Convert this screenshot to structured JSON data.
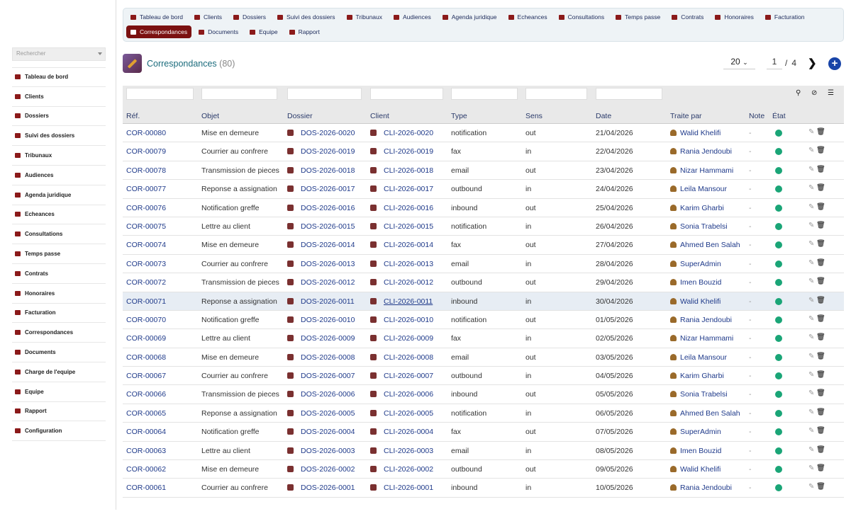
{
  "sidebar": {
    "search_placeholder": "Rechercher",
    "items": [
      {
        "label": "Tableau de bord",
        "icon": "dashboard-icon"
      },
      {
        "label": "Clients",
        "icon": "users-icon"
      },
      {
        "label": "Dossiers",
        "icon": "folder-icon"
      },
      {
        "label": "Suivi des dossiers",
        "icon": "columns-icon"
      },
      {
        "label": "Tribunaux",
        "icon": "balance-scale-icon"
      },
      {
        "label": "Audiences",
        "icon": "gavel-icon"
      },
      {
        "label": "Agenda juridique",
        "icon": "calendar-icon"
      },
      {
        "label": "Echeances",
        "icon": "clock-icon"
      },
      {
        "label": "Consultations",
        "icon": "comments-icon"
      },
      {
        "label": "Temps passe",
        "icon": "user-clock-icon"
      },
      {
        "label": "Contrats",
        "icon": "file-signature-icon"
      },
      {
        "label": "Honoraires",
        "icon": "money-icon"
      },
      {
        "label": "Facturation",
        "icon": "invoice-icon"
      },
      {
        "label": "Correspondances",
        "icon": "envelope-icon"
      },
      {
        "label": "Documents",
        "icon": "folder-icon"
      },
      {
        "label": "Charge de l'equipe",
        "icon": "team-icon"
      },
      {
        "label": "Equipe",
        "icon": "user-icon"
      },
      {
        "label": "Rapport",
        "icon": "chart-pie-icon"
      },
      {
        "label": "Configuration",
        "icon": "gear-icon"
      }
    ]
  },
  "topnav": {
    "row1": [
      {
        "label": "Tableau de bord",
        "icon": "dashboard-icon"
      },
      {
        "label": "Clients",
        "icon": "users-icon"
      },
      {
        "label": "Dossiers",
        "icon": "folder-icon"
      },
      {
        "label": "Suivi des dossiers",
        "icon": "columns-icon"
      },
      {
        "label": "Tribunaux",
        "icon": "balance-scale-icon"
      },
      {
        "label": "Audiences",
        "icon": "gavel-icon"
      },
      {
        "label": "Agenda juridique",
        "icon": "calendar-icon"
      },
      {
        "label": "Echeances",
        "icon": "clock-icon"
      },
      {
        "label": "Consultations",
        "icon": "comments-icon"
      },
      {
        "label": "Temps passe",
        "icon": "user-clock-icon"
      },
      {
        "label": "Contrats",
        "icon": "file-signature-icon"
      },
      {
        "label": "Honoraires",
        "icon": "money-icon"
      },
      {
        "label": "Facturation",
        "icon": "invoice-icon"
      }
    ],
    "row2": [
      {
        "label": "Correspondances",
        "icon": "envelope-icon",
        "active": true
      },
      {
        "label": "Documents",
        "icon": "folder-icon"
      },
      {
        "label": "Equipe",
        "icon": "team-icon"
      },
      {
        "label": "Rapport",
        "icon": "chart-pie-icon"
      }
    ]
  },
  "header": {
    "title": "Correspondances",
    "count": "(80)",
    "page_size": "20",
    "page": "1",
    "separator": "/",
    "total_pages": "4",
    "next": "❯",
    "add": "+"
  },
  "table": {
    "columns": [
      "Réf.",
      "Objet",
      "Dossier",
      "Client",
      "Type",
      "Sens",
      "Date",
      "Traite par",
      "Note",
      "État"
    ],
    "rows": [
      {
        "ref": "COR-00080",
        "objet": "Mise en demeure",
        "dossier": "DOS-2026-0020",
        "client": "CLI-2026-0020",
        "type": "notification",
        "sens": "out",
        "date": "21/04/2026",
        "user": "Walid Khelifi",
        "note": "-"
      },
      {
        "ref": "COR-00079",
        "objet": "Courrier au confrere",
        "dossier": "DOS-2026-0019",
        "client": "CLI-2026-0019",
        "type": "fax",
        "sens": "in",
        "date": "22/04/2026",
        "user": "Rania Jendoubi",
        "note": "-"
      },
      {
        "ref": "COR-00078",
        "objet": "Transmission de pieces",
        "dossier": "DOS-2026-0018",
        "client": "CLI-2026-0018",
        "type": "email",
        "sens": "out",
        "date": "23/04/2026",
        "user": "Nizar Hammami",
        "note": "-"
      },
      {
        "ref": "COR-00077",
        "objet": "Reponse a assignation",
        "dossier": "DOS-2026-0017",
        "client": "CLI-2026-0017",
        "type": "outbound",
        "sens": "in",
        "date": "24/04/2026",
        "user": "Leila Mansour",
        "note": "-"
      },
      {
        "ref": "COR-00076",
        "objet": "Notification greffe",
        "dossier": "DOS-2026-0016",
        "client": "CLI-2026-0016",
        "type": "inbound",
        "sens": "out",
        "date": "25/04/2026",
        "user": "Karim Gharbi",
        "note": "-"
      },
      {
        "ref": "COR-00075",
        "objet": "Lettre au client",
        "dossier": "DOS-2026-0015",
        "client": "CLI-2026-0015",
        "type": "notification",
        "sens": "in",
        "date": "26/04/2026",
        "user": "Sonia Trabelsi",
        "note": "-"
      },
      {
        "ref": "COR-00074",
        "objet": "Mise en demeure",
        "dossier": "DOS-2026-0014",
        "client": "CLI-2026-0014",
        "type": "fax",
        "sens": "out",
        "date": "27/04/2026",
        "user": "Ahmed Ben Salah",
        "note": "-"
      },
      {
        "ref": "COR-00073",
        "objet": "Courrier au confrere",
        "dossier": "DOS-2026-0013",
        "client": "CLI-2026-0013",
        "type": "email",
        "sens": "in",
        "date": "28/04/2026",
        "user": "SuperAdmin",
        "note": "-"
      },
      {
        "ref": "COR-00072",
        "objet": "Transmission de pieces",
        "dossier": "DOS-2026-0012",
        "client": "CLI-2026-0012",
        "type": "outbound",
        "sens": "out",
        "date": "29/04/2026",
        "user": "Imen Bouzid",
        "note": "-"
      },
      {
        "ref": "COR-00071",
        "objet": "Reponse a assignation",
        "dossier": "DOS-2026-0011",
        "client": "CLI-2026-0011",
        "type": "inbound",
        "sens": "in",
        "date": "30/04/2026",
        "user": "Walid Khelifi",
        "note": "-",
        "highlight": true
      },
      {
        "ref": "COR-00070",
        "objet": "Notification greffe",
        "dossier": "DOS-2026-0010",
        "client": "CLI-2026-0010",
        "type": "notification",
        "sens": "out",
        "date": "01/05/2026",
        "user": "Rania Jendoubi",
        "note": "-"
      },
      {
        "ref": "COR-00069",
        "objet": "Lettre au client",
        "dossier": "DOS-2026-0009",
        "client": "CLI-2026-0009",
        "type": "fax",
        "sens": "in",
        "date": "02/05/2026",
        "user": "Nizar Hammami",
        "note": "-"
      },
      {
        "ref": "COR-00068",
        "objet": "Mise en demeure",
        "dossier": "DOS-2026-0008",
        "client": "CLI-2026-0008",
        "type": "email",
        "sens": "out",
        "date": "03/05/2026",
        "user": "Leila Mansour",
        "note": "-"
      },
      {
        "ref": "COR-00067",
        "objet": "Courrier au confrere",
        "dossier": "DOS-2026-0007",
        "client": "CLI-2026-0007",
        "type": "outbound",
        "sens": "in",
        "date": "04/05/2026",
        "user": "Karim Gharbi",
        "note": "-"
      },
      {
        "ref": "COR-00066",
        "objet": "Transmission de pieces",
        "dossier": "DOS-2026-0006",
        "client": "CLI-2026-0006",
        "type": "inbound",
        "sens": "out",
        "date": "05/05/2026",
        "user": "Sonia Trabelsi",
        "note": "-"
      },
      {
        "ref": "COR-00065",
        "objet": "Reponse a assignation",
        "dossier": "DOS-2026-0005",
        "client": "CLI-2026-0005",
        "type": "notification",
        "sens": "in",
        "date": "06/05/2026",
        "user": "Ahmed Ben Salah",
        "note": "-"
      },
      {
        "ref": "COR-00064",
        "objet": "Notification greffe",
        "dossier": "DOS-2026-0004",
        "client": "CLI-2026-0004",
        "type": "fax",
        "sens": "out",
        "date": "07/05/2026",
        "user": "SuperAdmin",
        "note": "-"
      },
      {
        "ref": "COR-00063",
        "objet": "Lettre au client",
        "dossier": "DOS-2026-0003",
        "client": "CLI-2026-0003",
        "type": "email",
        "sens": "in",
        "date": "08/05/2026",
        "user": "Imen Bouzid",
        "note": "-"
      },
      {
        "ref": "COR-00062",
        "objet": "Mise en demeure",
        "dossier": "DOS-2026-0002",
        "client": "CLI-2026-0002",
        "type": "outbound",
        "sens": "out",
        "date": "09/05/2026",
        "user": "Walid Khelifi",
        "note": "-"
      },
      {
        "ref": "COR-00061",
        "objet": "Courrier au confrere",
        "dossier": "DOS-2026-0001",
        "client": "CLI-2026-0001",
        "type": "inbound",
        "sens": "in",
        "date": "10/05/2026",
        "user": "Rania Jendoubi",
        "note": "-"
      }
    ]
  },
  "colors": {
    "brand": "#7b1111",
    "status_ok": "#1aa577",
    "link": "#1f3a8a",
    "title": "#1a6b7c"
  }
}
